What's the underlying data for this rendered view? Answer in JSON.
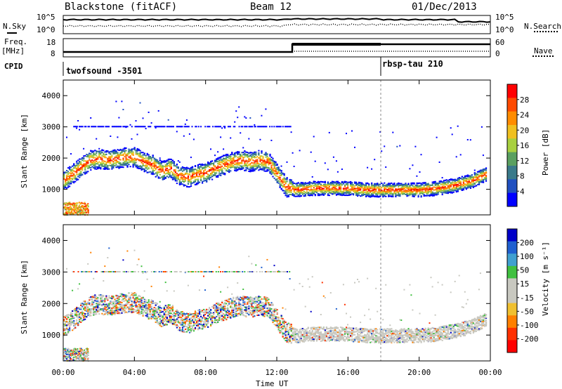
{
  "header": {
    "station": "Blackstone (fitACF)",
    "beam": "Beam 12",
    "date": "01/Dec/2013"
  },
  "top_panels": {
    "nsky_label": "N.Sky",
    "nsearch_label": "N.Search",
    "freq_label": "Freq.",
    "freq_unit": "[MHz]",
    "nave_label": "Nave",
    "cpid_label": "CPID",
    "noise_ticks_left": [
      "10^5",
      "10^0"
    ],
    "noise_ticks_right": [
      "10^5",
      "10^0"
    ],
    "freq_ticks_left": [
      "18",
      "8"
    ],
    "nave_ticks_right": [
      "60",
      "0"
    ],
    "cpid_segments": [
      {
        "name": "twofsound",
        "id": "-3501"
      },
      {
        "name": "rbsp-tau",
        "id": "210"
      }
    ]
  },
  "chart_data": [
    {
      "type": "heatmap",
      "name": "power",
      "ylabel": "Slant Range [km]",
      "yticks": [
        "4000",
        "3000",
        "2000",
        "1000"
      ],
      "ylim": [
        180,
        4500
      ],
      "colorbar_label": "Power [dB]",
      "colorbar_ticks": [
        "28",
        "24",
        "20",
        "16",
        "12",
        "8",
        "4"
      ],
      "colorbar_colors": [
        "#ff0000",
        "#ff4a00",
        "#ff8c00",
        "#f0c020",
        "#a8d040",
        "#5aa060",
        "#3a7a8a",
        "#2050c0",
        "#0000ff"
      ],
      "echo_band": {
        "x_hours": [
          0.0,
          0.5,
          1.0,
          1.5,
          2.0,
          2.5,
          3.0,
          3.5,
          4.0,
          4.5,
          5.0,
          5.5,
          6.0,
          6.5,
          7.0,
          7.5,
          8.0,
          8.5,
          9.0,
          9.5,
          10.0,
          10.5,
          11.0,
          11.5,
          12.0,
          12.5,
          13.0,
          14.0,
          15.0,
          16.0,
          17.0,
          18.0,
          19.0,
          20.0,
          21.0,
          22.0,
          23.0,
          23.7
        ],
        "center_km": [
          1300,
          1500,
          1750,
          1950,
          2000,
          1950,
          2000,
          2050,
          2050,
          1900,
          1800,
          1600,
          1700,
          1450,
          1400,
          1500,
          1550,
          1700,
          1800,
          1900,
          1950,
          1900,
          1950,
          1900,
          1500,
          1100,
          1000,
          1050,
          1050,
          1050,
          1000,
          1000,
          1000,
          1000,
          1050,
          1150,
          1300,
          1500
        ]
      }
    },
    {
      "type": "heatmap",
      "name": "velocity",
      "ylabel": "Slant Range [km]",
      "yticks": [
        "4000",
        "3000",
        "2000",
        "1000"
      ],
      "ylim": [
        180,
        4500
      ],
      "colorbar_label": "Velocity [m s⁻¹]",
      "colorbar_ticks": [
        "200",
        "100",
        "50",
        "15",
        "-15",
        "-50",
        "-100",
        "-200"
      ],
      "colorbar_colors": [
        "#0000c8",
        "#2060d0",
        "#40a0d0",
        "#40c040",
        "#c8c8c0",
        "#c8c8c0",
        "#f0c030",
        "#ff8000",
        "#ff3000",
        "#ff0000"
      ]
    }
  ],
  "xaxis": {
    "label": "Time UT",
    "ticks": [
      "00:00",
      "04:00",
      "08:00",
      "12:00",
      "16:00",
      "20:00",
      "00:00"
    ]
  }
}
